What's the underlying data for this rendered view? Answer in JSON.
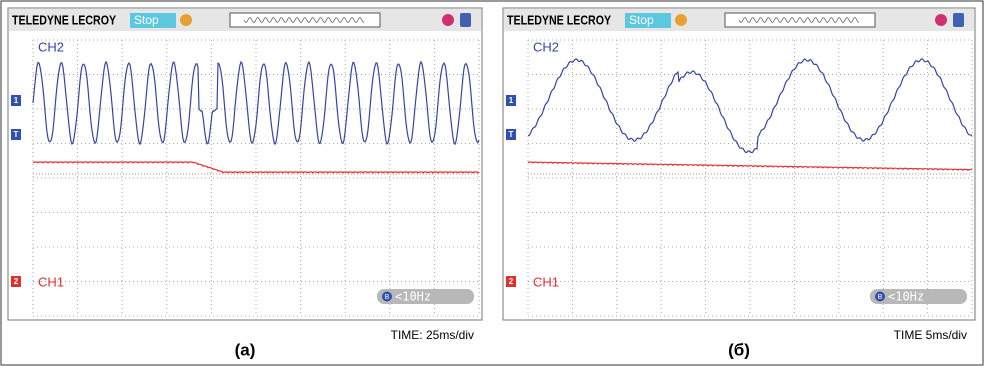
{
  "panels": [
    {
      "brand": "TELEDYNE LECROY",
      "status": "Stop",
      "ch2_label": "CH2",
      "ch1_label": "CH1",
      "marker_ch2": "1",
      "marker_trigger": "T",
      "marker_ch1": "2",
      "filter_icon": "B",
      "filter": "<10Hz",
      "time": "TIME: 25ms/div",
      "caption": "(a)"
    },
    {
      "brand": "TELEDYNE LECROY",
      "status": "Stop",
      "ch2_label": "CH2",
      "ch1_label": "CH1",
      "marker_ch2": "1",
      "marker_trigger": "T",
      "marker_ch1": "2",
      "filter_icon": "B",
      "filter": "<10Hz",
      "time": "TIME 5ms/div",
      "caption": "(б)"
    }
  ]
}
